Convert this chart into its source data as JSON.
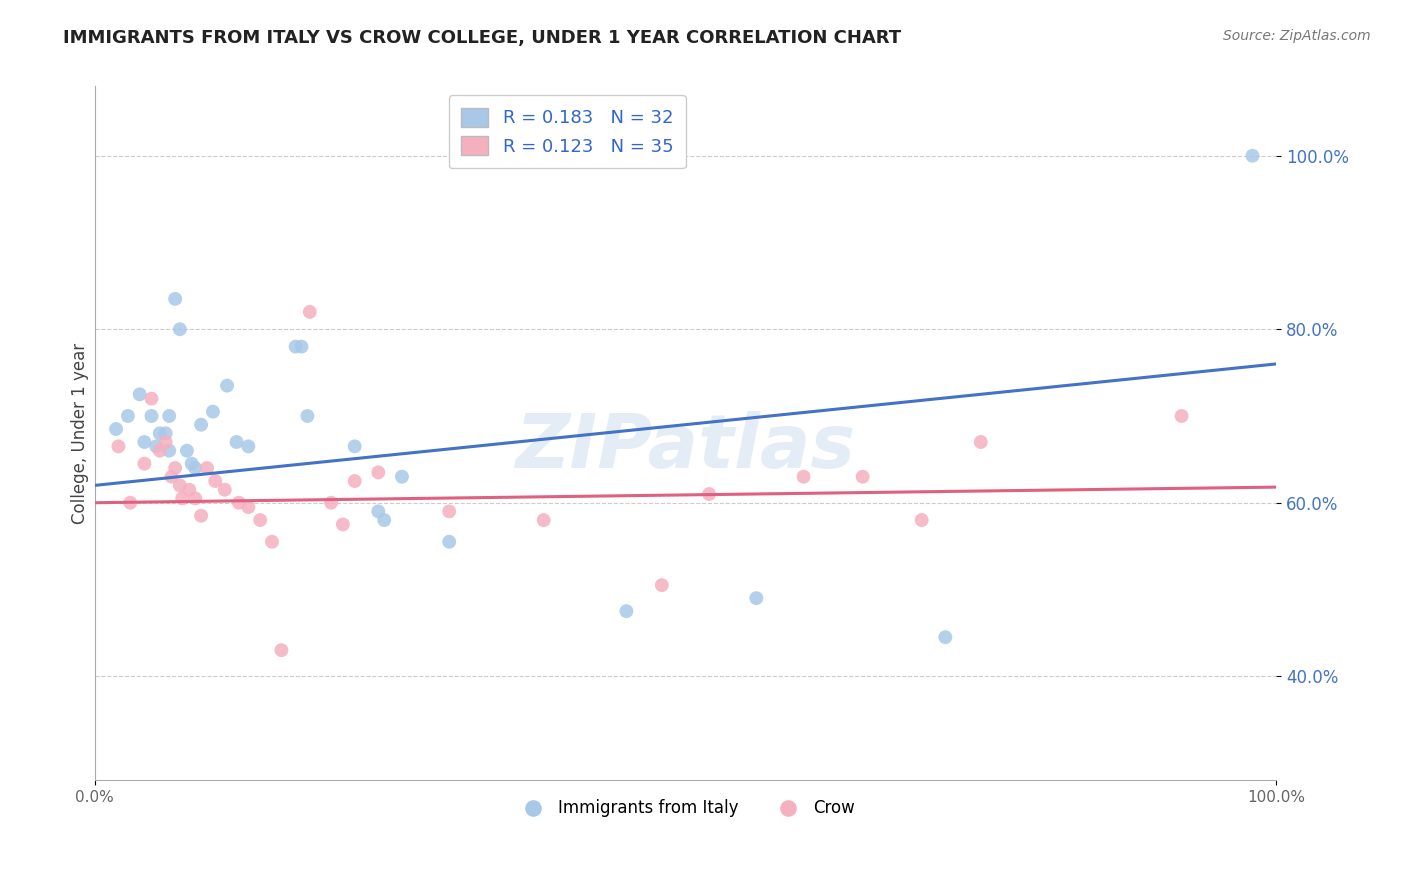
{
  "title": "IMMIGRANTS FROM ITALY VS CROW COLLEGE, UNDER 1 YEAR CORRELATION CHART",
  "source": "Source: ZipAtlas.com",
  "ylabel": "College, Under 1 year",
  "series1_label": "Immigrants from Italy",
  "series2_label": "Crow",
  "blue_color": "#a8c8e8",
  "pink_color": "#f5b0c0",
  "blue_line_color": "#4472c4",
  "pink_line_color": "#e06080",
  "legend_text_color": "#3366cc",
  "watermark": "ZIPatlas",
  "blue_R": "0.183",
  "blue_N": "32",
  "pink_R": "0.123",
  "pink_N": "35",
  "blue_points_x": [
    0.018,
    0.028,
    0.038,
    0.042,
    0.048,
    0.052,
    0.055,
    0.06,
    0.063,
    0.063,
    0.068,
    0.072,
    0.078,
    0.082,
    0.085,
    0.09,
    0.1,
    0.112,
    0.12,
    0.13,
    0.17,
    0.175,
    0.18,
    0.22,
    0.24,
    0.245,
    0.26,
    0.3,
    0.45,
    0.56,
    0.72,
    0.98
  ],
  "blue_points_y": [
    0.685,
    0.7,
    0.725,
    0.67,
    0.7,
    0.665,
    0.68,
    0.68,
    0.7,
    0.66,
    0.835,
    0.8,
    0.66,
    0.645,
    0.64,
    0.69,
    0.705,
    0.735,
    0.67,
    0.665,
    0.78,
    0.78,
    0.7,
    0.665,
    0.59,
    0.58,
    0.63,
    0.555,
    0.475,
    0.49,
    0.445,
    1.0
  ],
  "pink_points_x": [
    0.02,
    0.03,
    0.042,
    0.048,
    0.055,
    0.06,
    0.065,
    0.068,
    0.072,
    0.074,
    0.08,
    0.085,
    0.09,
    0.095,
    0.102,
    0.11,
    0.122,
    0.13,
    0.14,
    0.15,
    0.158,
    0.182,
    0.2,
    0.21,
    0.22,
    0.24,
    0.3,
    0.38,
    0.48,
    0.52,
    0.6,
    0.65,
    0.7,
    0.75,
    0.92
  ],
  "pink_points_y": [
    0.665,
    0.6,
    0.645,
    0.72,
    0.66,
    0.67,
    0.63,
    0.64,
    0.62,
    0.605,
    0.615,
    0.605,
    0.585,
    0.64,
    0.625,
    0.615,
    0.6,
    0.595,
    0.58,
    0.555,
    0.43,
    0.82,
    0.6,
    0.575,
    0.625,
    0.635,
    0.59,
    0.58,
    0.505,
    0.61,
    0.63,
    0.63,
    0.58,
    0.67,
    0.7
  ],
  "blue_line_x": [
    0.0,
    1.0
  ],
  "blue_line_y": [
    0.62,
    0.76
  ],
  "pink_line_y": [
    0.6,
    0.618
  ],
  "xlim": [
    0.0,
    1.0
  ],
  "ylim": [
    0.28,
    1.08
  ],
  "yticks": [
    0.4,
    0.6,
    0.8,
    1.0
  ],
  "ytick_labels": [
    "40.0%",
    "60.0%",
    "80.0%",
    "100.0%"
  ],
  "xtick_positions": [
    0.0,
    1.0
  ],
  "xtick_labels": [
    "0.0%",
    "100.0%"
  ],
  "grid_color": "#cccccc",
  "bg_color": "#ffffff",
  "marker_size": 100
}
